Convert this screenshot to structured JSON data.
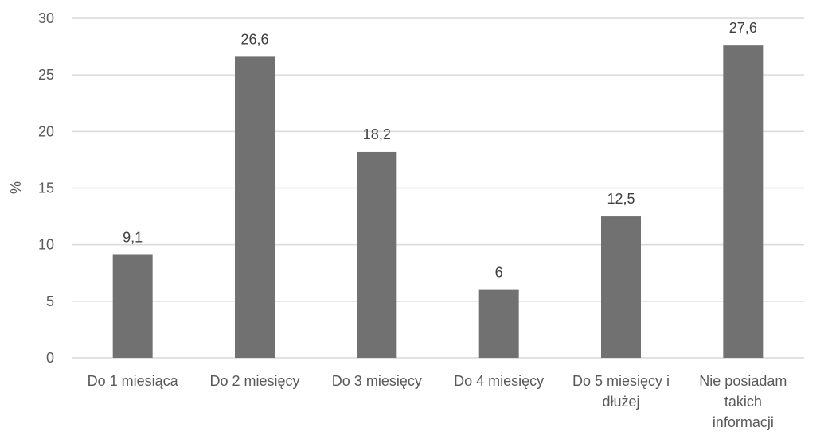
{
  "chart_data": {
    "type": "bar",
    "categories": [
      [
        "Do 1 miesiąca"
      ],
      [
        "Do 2 miesięcy"
      ],
      [
        "Do 3 miesięcy"
      ],
      [
        "Do 4 miesięcy"
      ],
      [
        "Do 5 miesięcy i",
        "dłużej"
      ],
      [
        "Nie posiadam",
        "takich",
        "informacji"
      ]
    ],
    "values": [
      9.1,
      26.6,
      18.2,
      6,
      12.5,
      27.6
    ],
    "data_labels": [
      "9,1",
      "26,6",
      "18,2",
      "6",
      "12,5",
      "27,6"
    ],
    "title": "",
    "xlabel": "",
    "ylabel": "%",
    "ylim": [
      0,
      30
    ],
    "yticks": [
      0,
      5,
      10,
      15,
      20,
      25,
      30
    ],
    "grid": true,
    "legend": "none",
    "colors": {
      "bar": "#717171",
      "grid": "#d9d9d9",
      "text": "#595959",
      "label": "#404040"
    }
  }
}
